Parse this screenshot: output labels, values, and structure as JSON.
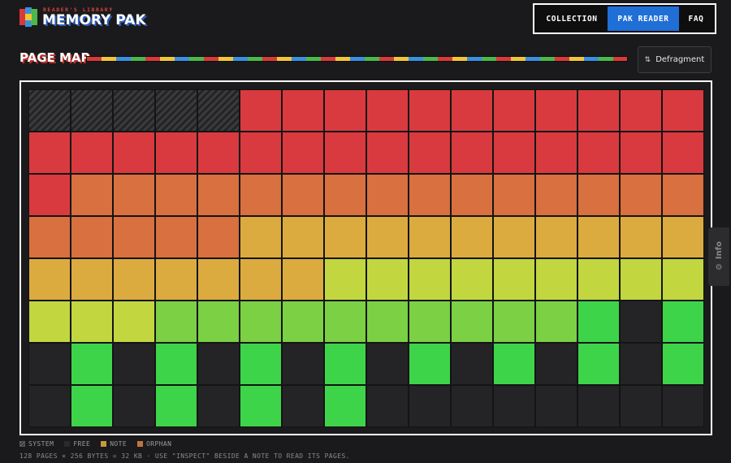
{
  "header": {
    "logo_sub": "READER'S LIBRARY",
    "logo_main": "MEMORY PAK",
    "logo_colors": [
      "#d83a3a",
      "#f0c53a",
      "#3a8fe0",
      "#4cb84c"
    ]
  },
  "nav": {
    "items": [
      {
        "label": "COLLECTION",
        "active": false
      },
      {
        "label": "PAK READER",
        "active": true
      },
      {
        "label": "FAQ",
        "active": false
      }
    ],
    "active_color": "#1f6fd6"
  },
  "page_map": {
    "title": "PAGE MAP",
    "defragment_label": "Defragment",
    "defragment_icon": "sort-icon"
  },
  "info_tab": {
    "label": "Info",
    "icon": "gear-icon"
  },
  "grid": {
    "columns": 16,
    "rows": 8,
    "rows_data": [
      [
        "S",
        "S",
        "S",
        "S",
        "S",
        "R",
        "R",
        "R",
        "R",
        "R",
        "R",
        "R",
        "R",
        "R",
        "R",
        "R"
      ],
      [
        "R",
        "R",
        "R",
        "R",
        "R",
        "R",
        "R",
        "R",
        "R",
        "R",
        "R",
        "R",
        "R",
        "R",
        "R",
        "R"
      ],
      [
        "R",
        "O",
        "O",
        "O",
        "O",
        "O",
        "O",
        "O",
        "O",
        "O",
        "O",
        "O",
        "O",
        "O",
        "O",
        "O"
      ],
      [
        "O",
        "O",
        "O",
        "O",
        "O",
        "Y",
        "Y",
        "Y",
        "Y",
        "Y",
        "Y",
        "Y",
        "Y",
        "Y",
        "Y",
        "Y"
      ],
      [
        "Y",
        "Y",
        "Y",
        "Y",
        "Y",
        "Y",
        "Y",
        "L",
        "L",
        "L",
        "L",
        "L",
        "L",
        "L",
        "L",
        "L"
      ],
      [
        "L",
        "L",
        "L",
        "G",
        "G",
        "G",
        "G",
        "G",
        "G",
        "G",
        "G",
        "G",
        "G",
        "B",
        "F",
        "B"
      ],
      [
        "F",
        "B",
        "F",
        "B",
        "F",
        "B",
        "F",
        "B",
        "F",
        "B",
        "F",
        "B",
        "F",
        "B",
        "F",
        "B"
      ],
      [
        "F",
        "B",
        "F",
        "B",
        "F",
        "B",
        "F",
        "B",
        "F",
        "F",
        "F",
        "F",
        "F",
        "F",
        "F",
        "F"
      ]
    ],
    "colors": {
      "R": "#d93a3f",
      "O": "#d8703f",
      "Y": "#dcab3f",
      "L": "#c2d640",
      "G": "#7bd043",
      "B": "#3ed44a"
    }
  },
  "legend": [
    {
      "label": "SYSTEM",
      "swatch": "system"
    },
    {
      "label": "FREE",
      "swatch": "#2a2a2c"
    },
    {
      "label": "NOTE",
      "swatch": "#c99a3a"
    },
    {
      "label": "ORPHAN",
      "swatch": "#c0763a"
    }
  ],
  "footer": "128 PAGES × 256 BYTES = 32 KB · USE \"INSPECT\" BESIDE A NOTE TO READ ITS PAGES."
}
